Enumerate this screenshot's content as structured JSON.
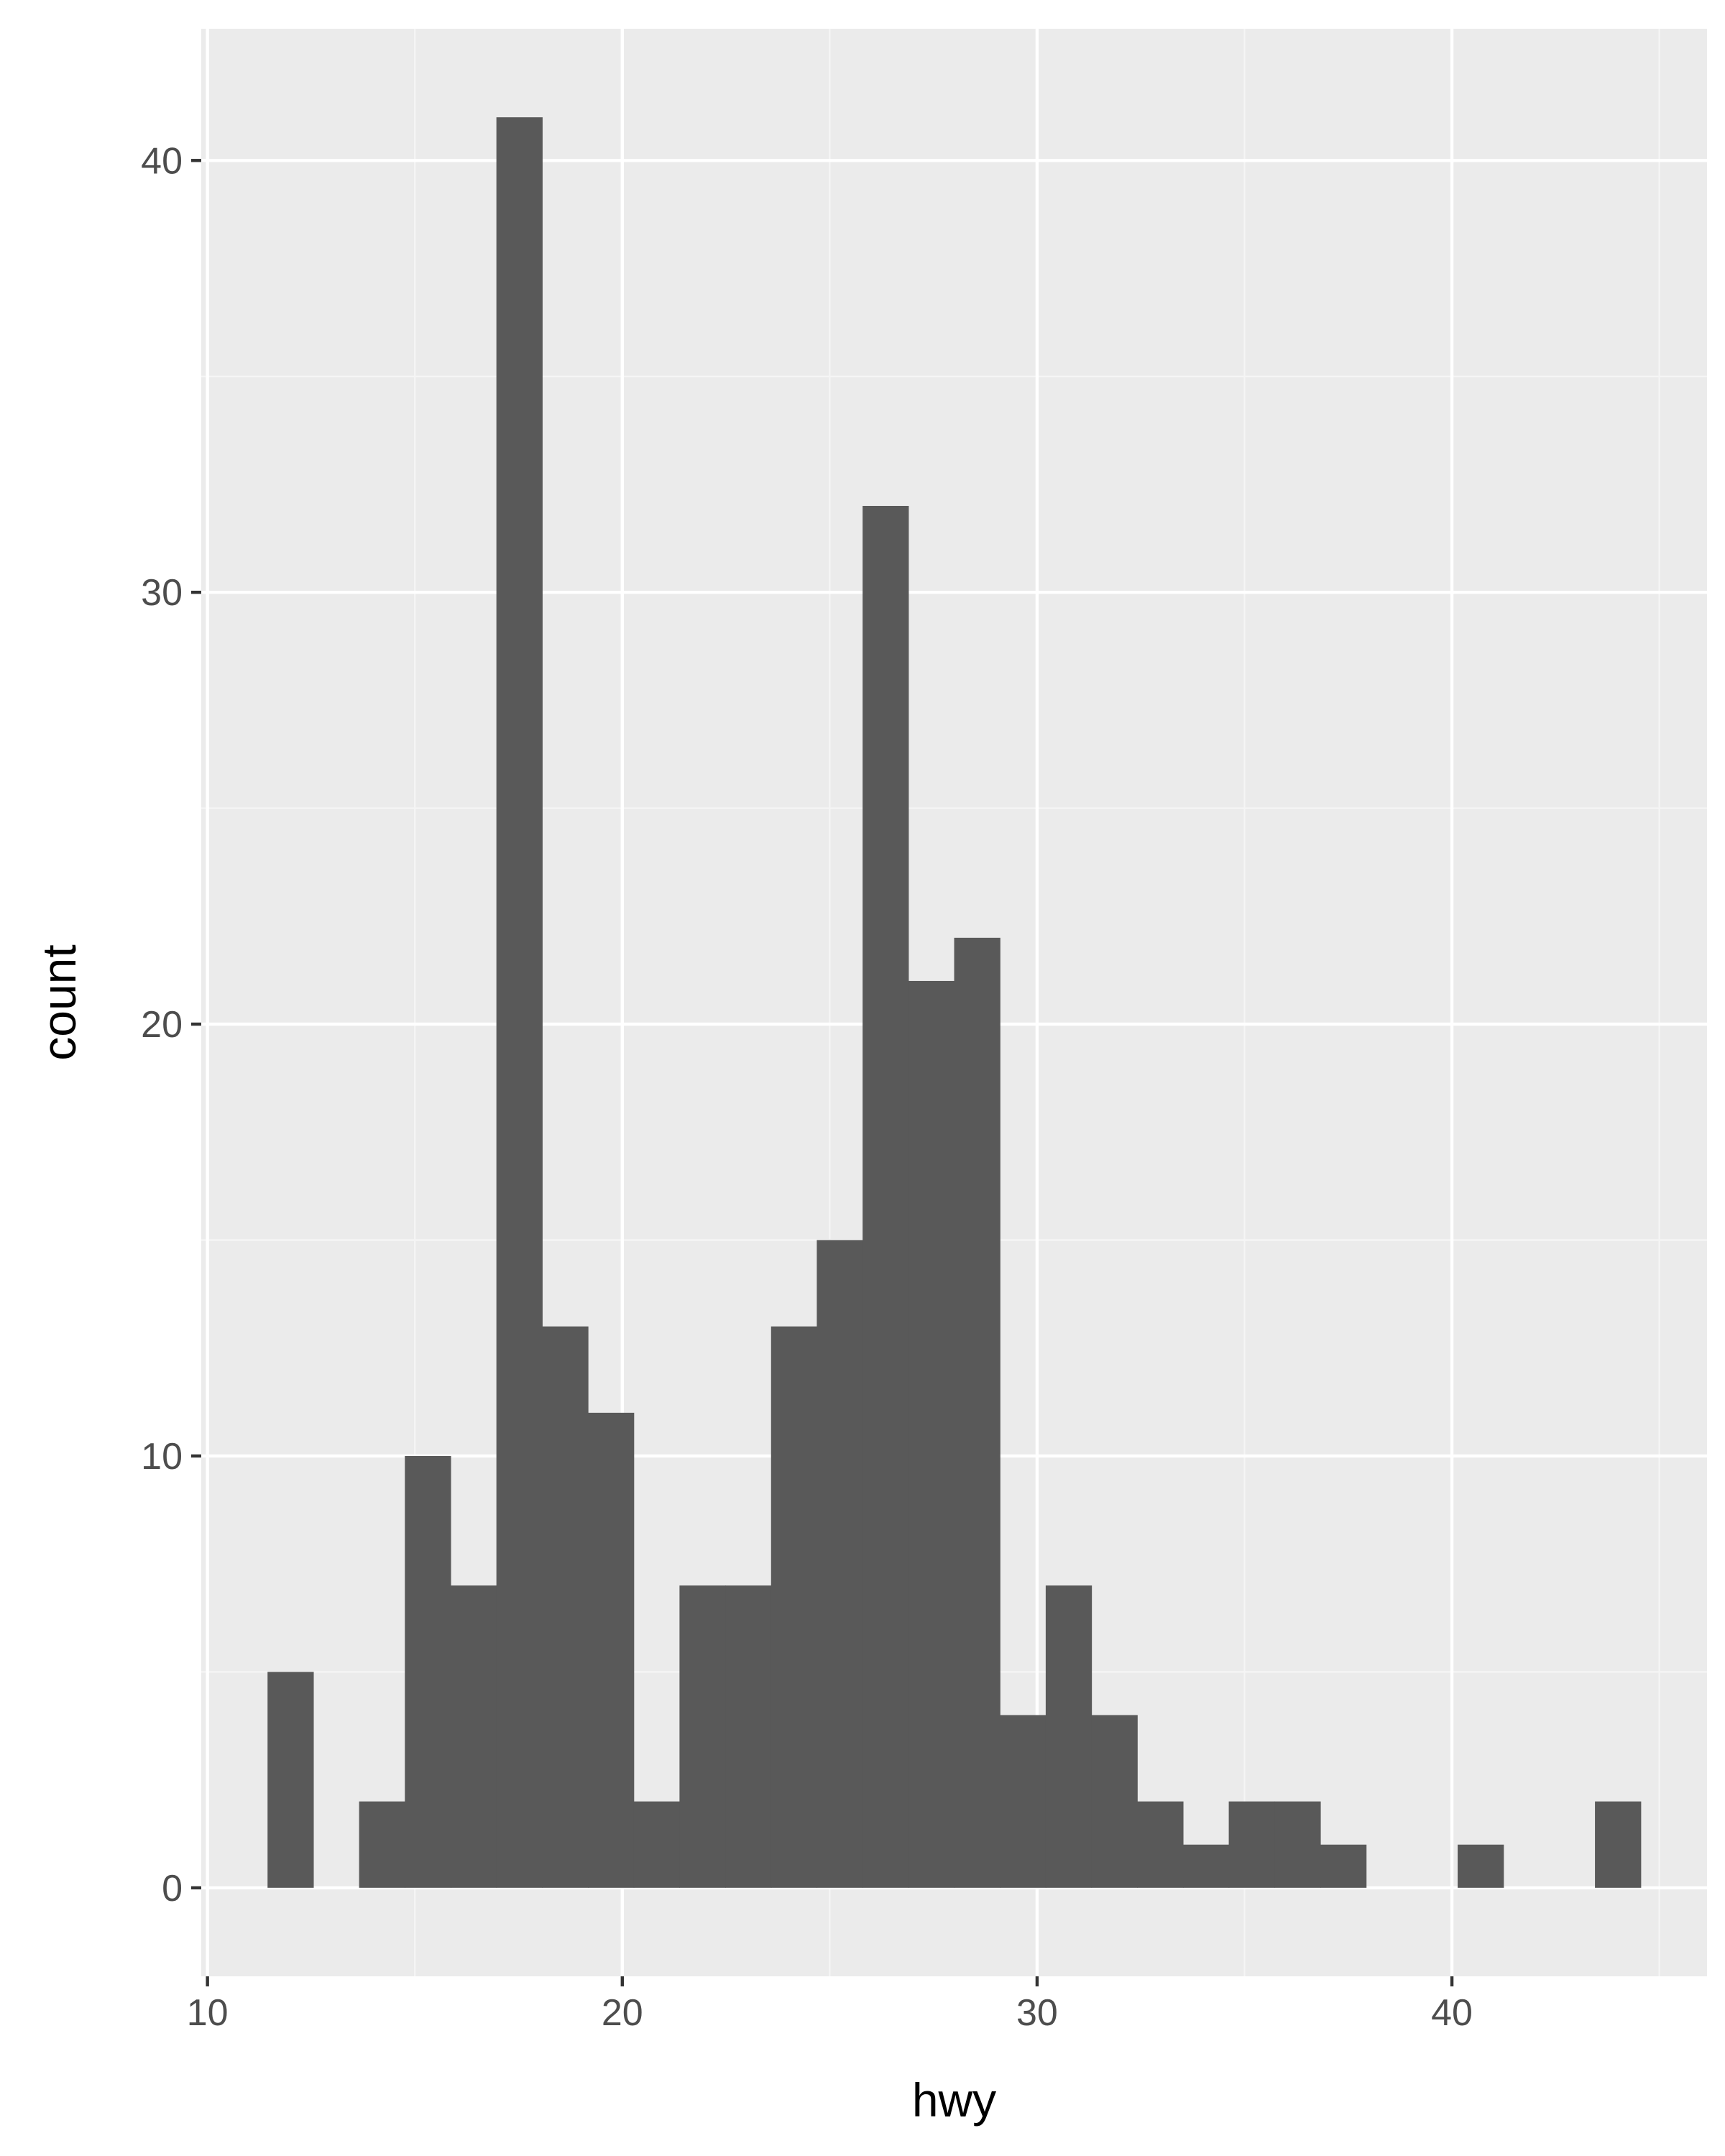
{
  "chart_data": {
    "type": "bar",
    "subtype": "histogram",
    "title": "",
    "xlabel": "hwy",
    "ylabel": "count",
    "xlim": [
      9.85,
      46.15
    ],
    "ylim": [
      -2.05,
      43.05
    ],
    "x_ticks": [
      10,
      20,
      30,
      40
    ],
    "y_ticks": [
      0,
      10,
      20,
      30,
      40
    ],
    "x_minor_ticks": [
      15,
      25,
      35,
      45
    ],
    "y_minor_ticks": [
      5,
      15,
      25,
      35
    ],
    "bin_width": 1.1034,
    "bins": [
      {
        "center": 12.0,
        "count": 5
      },
      {
        "center": 13.103,
        "count": 0
      },
      {
        "center": 14.207,
        "count": 2
      },
      {
        "center": 15.31,
        "count": 10
      },
      {
        "center": 16.414,
        "count": 7
      },
      {
        "center": 17.517,
        "count": 41
      },
      {
        "center": 18.621,
        "count": 13
      },
      {
        "center": 19.724,
        "count": 11
      },
      {
        "center": 20.828,
        "count": 2
      },
      {
        "center": 21.931,
        "count": 7
      },
      {
        "center": 23.034,
        "count": 7
      },
      {
        "center": 24.138,
        "count": 13
      },
      {
        "center": 25.241,
        "count": 15
      },
      {
        "center": 26.345,
        "count": 32
      },
      {
        "center": 27.448,
        "count": 21
      },
      {
        "center": 28.552,
        "count": 22
      },
      {
        "center": 29.655,
        "count": 4
      },
      {
        "center": 30.759,
        "count": 7
      },
      {
        "center": 31.862,
        "count": 4
      },
      {
        "center": 32.966,
        "count": 2
      },
      {
        "center": 34.069,
        "count": 1
      },
      {
        "center": 35.172,
        "count": 2
      },
      {
        "center": 36.276,
        "count": 2
      },
      {
        "center": 37.379,
        "count": 1
      },
      {
        "center": 38.483,
        "count": 0
      },
      {
        "center": 39.586,
        "count": 0
      },
      {
        "center": 40.69,
        "count": 1
      },
      {
        "center": 41.793,
        "count": 0
      },
      {
        "center": 42.897,
        "count": 0
      },
      {
        "center": 44.0,
        "count": 2
      }
    ],
    "grid": true,
    "legend": "none",
    "colors": {
      "panel_background": "#ebebeb",
      "grid_major": "#ffffff",
      "grid_minor": "#f5f5f5",
      "bar_fill": "#595959",
      "tick_text": "#4d4d4d",
      "tick_mark": "#333333",
      "axis_title": "#000000"
    }
  }
}
